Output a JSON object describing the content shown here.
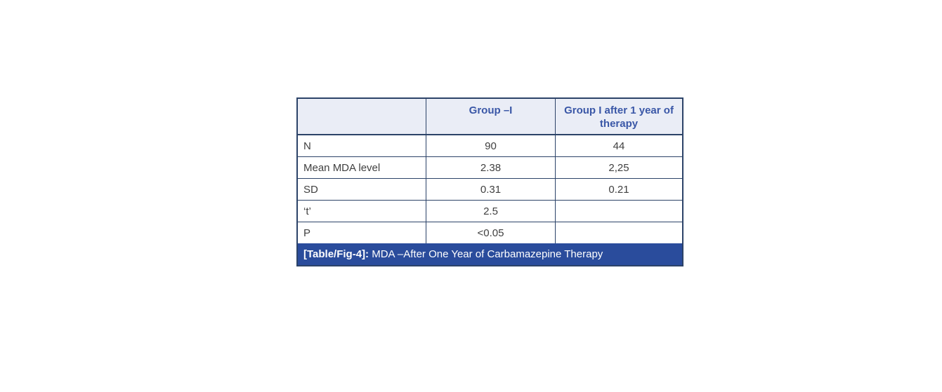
{
  "colors": {
    "grid_border": "#2c4368",
    "header_bg": "#eaedf6",
    "header_text": "#3a57a7",
    "caption_bg": "#2a4c9c",
    "caption_text": "#ffffff",
    "body_text": "#404040",
    "page_bg": "#ffffff"
  },
  "table": {
    "columns": [
      "",
      "Group –I",
      "Group I after 1 year of therapy"
    ],
    "rows": [
      [
        "N",
        "90",
        "44"
      ],
      [
        "Mean MDA level",
        "2.38",
        "2,25"
      ],
      [
        "SD",
        "0.31",
        "0.21"
      ],
      [
        "‘t’",
        "2.5",
        ""
      ],
      [
        "P",
        "<0.05",
        ""
      ]
    ],
    "caption": {
      "tag": "[Table/Fig-4]:",
      "text": " MDA –After One Year of Carbamazepine Therapy"
    }
  }
}
